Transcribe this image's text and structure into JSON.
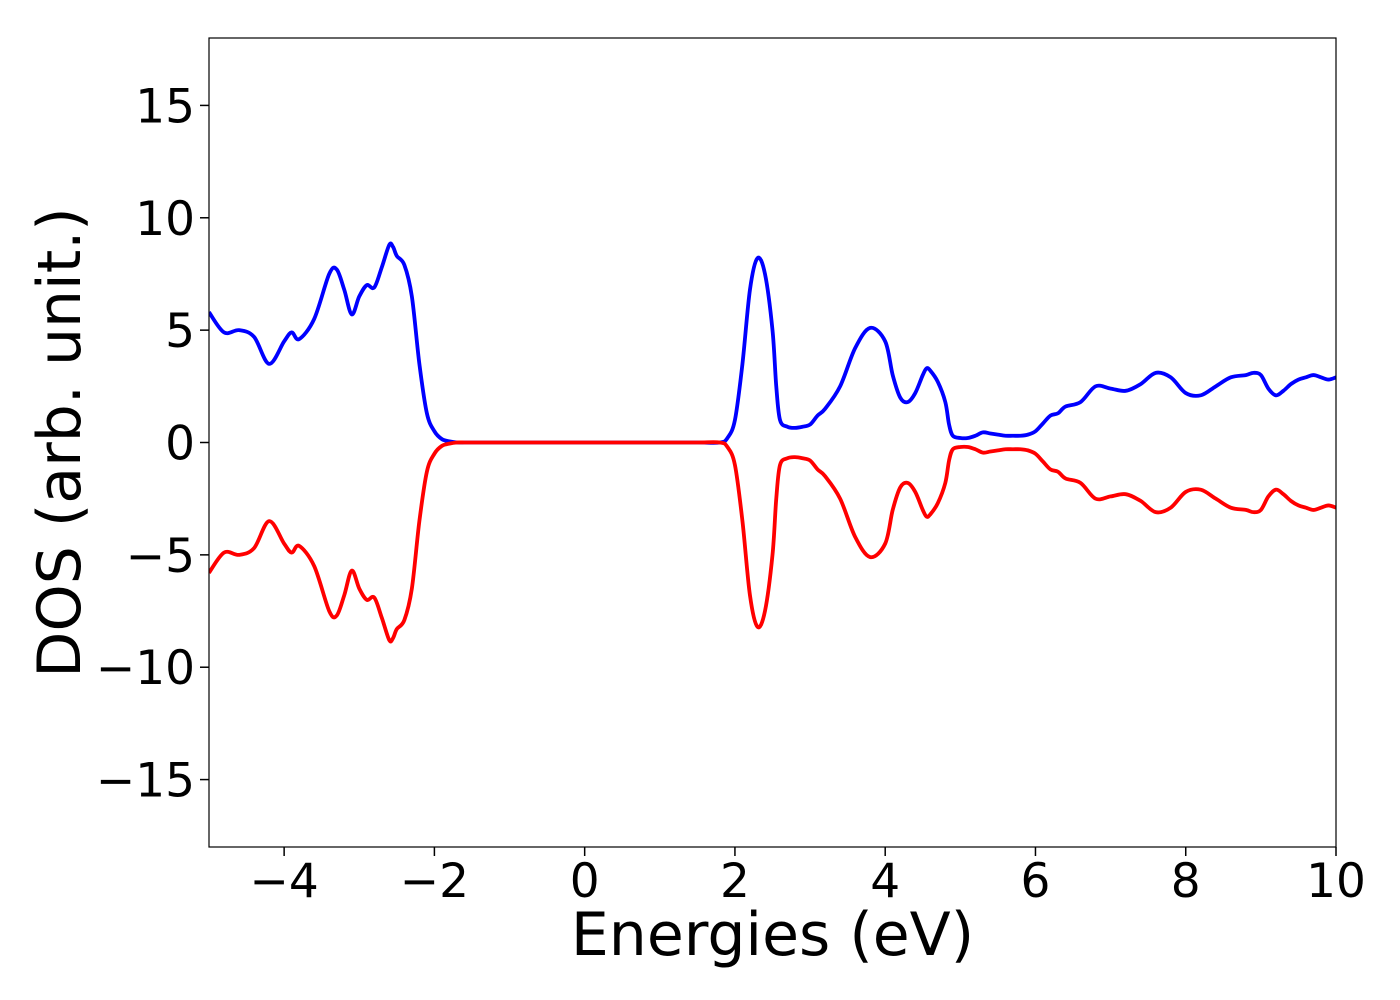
{
  "chart_data": {
    "type": "line",
    "title": "",
    "xlabel": "Energies (eV)",
    "ylabel": "DOS (arb. unit.)",
    "xlim": [
      -5,
      10
    ],
    "ylim": [
      -18,
      18
    ],
    "grid": false,
    "legend": "none",
    "x_ticks": [
      -4,
      -2,
      0,
      2,
      4,
      6,
      8,
      10
    ],
    "x_tick_labels": [
      "−4",
      "−2",
      "0",
      "2",
      "4",
      "6",
      "8",
      "10"
    ],
    "y_ticks": [
      -15,
      -10,
      -5,
      0,
      5,
      10,
      15
    ],
    "y_tick_labels": [
      "−15",
      "−10",
      "−5",
      "0",
      "5",
      "10",
      "15"
    ],
    "series": [
      {
        "color": "#0000ff",
        "x": [
          -5.0,
          -4.8,
          -4.6,
          -4.4,
          -4.2,
          -4.0,
          -3.9,
          -3.8,
          -3.6,
          -3.4,
          -3.3,
          -3.2,
          -3.1,
          -3.0,
          -2.9,
          -2.8,
          -2.7,
          -2.6,
          -2.55,
          -2.5,
          -2.4,
          -2.3,
          -2.2,
          -2.1,
          -2.0,
          -1.9,
          -1.8,
          -1.7,
          -1.6,
          -1.5,
          -1.4,
          -1.3,
          -1.2,
          -1.1,
          -1.0,
          -0.9,
          -0.8,
          -0.7,
          -0.6,
          -0.5,
          0.0,
          0.5,
          1.0,
          1.5,
          1.8,
          1.9,
          2.0,
          2.1,
          2.2,
          2.3,
          2.4,
          2.5,
          2.55,
          2.6,
          2.7,
          2.8,
          2.9,
          3.0,
          3.1,
          3.2,
          3.4,
          3.6,
          3.8,
          4.0,
          4.1,
          4.2,
          4.3,
          4.4,
          4.5,
          4.55,
          4.6,
          4.7,
          4.8,
          4.85,
          4.9,
          5.0,
          5.1,
          5.2,
          5.3,
          5.4,
          5.5,
          5.6,
          5.7,
          5.8,
          5.9,
          6.0,
          6.1,
          6.2,
          6.3,
          6.4,
          6.6,
          6.8,
          7.0,
          7.2,
          7.4,
          7.6,
          7.8,
          8.0,
          8.2,
          8.4,
          8.6,
          8.8,
          8.9,
          9.0,
          9.1,
          9.2,
          9.3,
          9.4,
          9.5,
          9.6,
          9.7,
          9.8,
          9.9,
          10.0
        ],
        "y": [
          5.8,
          4.9,
          5.0,
          4.7,
          3.5,
          4.5,
          4.9,
          4.6,
          5.5,
          7.5,
          7.7,
          6.8,
          5.7,
          6.5,
          7.0,
          6.9,
          7.8,
          8.8,
          8.7,
          8.3,
          7.9,
          6.5,
          3.5,
          1.3,
          0.5,
          0.15,
          0.05,
          0.0,
          0.0,
          0.0,
          0.0,
          0.0,
          0.0,
          0.0,
          0.0,
          0.0,
          0.0,
          0.0,
          0.0,
          0.0,
          0.0,
          0.0,
          0.0,
          0.0,
          0.0,
          0.2,
          1.0,
          3.5,
          6.8,
          8.2,
          7.5,
          5.0,
          2.5,
          1.0,
          0.7,
          0.65,
          0.7,
          0.8,
          1.2,
          1.5,
          2.5,
          4.2,
          5.1,
          4.5,
          3.0,
          2.0,
          1.8,
          2.2,
          3.0,
          3.3,
          3.2,
          2.7,
          1.8,
          0.8,
          0.3,
          0.2,
          0.2,
          0.3,
          0.45,
          0.4,
          0.35,
          0.3,
          0.3,
          0.3,
          0.35,
          0.5,
          0.85,
          1.2,
          1.3,
          1.6,
          1.8,
          2.5,
          2.4,
          2.3,
          2.6,
          3.1,
          2.9,
          2.2,
          2.1,
          2.5,
          2.9,
          3.0,
          3.1,
          3.0,
          2.4,
          2.1,
          2.3,
          2.6,
          2.8,
          2.9,
          3.0,
          2.9,
          2.8,
          2.9
        ]
      },
      {
        "color": "#ff0000",
        "x": [
          -5.0,
          -4.8,
          -4.6,
          -4.4,
          -4.2,
          -4.0,
          -3.9,
          -3.8,
          -3.6,
          -3.4,
          -3.3,
          -3.2,
          -3.1,
          -3.0,
          -2.9,
          -2.8,
          -2.7,
          -2.6,
          -2.55,
          -2.5,
          -2.4,
          -2.3,
          -2.2,
          -2.1,
          -2.0,
          -1.9,
          -1.8,
          -1.7,
          -1.6,
          -1.5,
          -1.4,
          -1.3,
          -1.2,
          -1.1,
          -1.0,
          -0.9,
          -0.8,
          -0.7,
          -0.6,
          -0.5,
          0.0,
          0.5,
          1.0,
          1.5,
          1.8,
          1.9,
          2.0,
          2.1,
          2.2,
          2.3,
          2.4,
          2.5,
          2.55,
          2.6,
          2.7,
          2.8,
          2.9,
          3.0,
          3.1,
          3.2,
          3.4,
          3.6,
          3.8,
          4.0,
          4.1,
          4.2,
          4.3,
          4.4,
          4.5,
          4.55,
          4.6,
          4.7,
          4.8,
          4.85,
          4.9,
          5.0,
          5.1,
          5.2,
          5.3,
          5.4,
          5.5,
          5.6,
          5.7,
          5.8,
          5.9,
          6.0,
          6.1,
          6.2,
          6.3,
          6.4,
          6.6,
          6.8,
          7.0,
          7.2,
          7.4,
          7.6,
          7.8,
          8.0,
          8.2,
          8.4,
          8.6,
          8.8,
          8.9,
          9.0,
          9.1,
          9.2,
          9.3,
          9.4,
          9.5,
          9.6,
          9.7,
          9.8,
          9.9,
          10.0
        ],
        "y": [
          -5.8,
          -4.9,
          -5.0,
          -4.7,
          -3.5,
          -4.5,
          -4.9,
          -4.6,
          -5.5,
          -7.5,
          -7.7,
          -6.8,
          -5.7,
          -6.5,
          -7.0,
          -6.9,
          -7.8,
          -8.8,
          -8.7,
          -8.3,
          -7.9,
          -6.5,
          -3.5,
          -1.3,
          -0.5,
          -0.15,
          -0.05,
          0.0,
          0.0,
          0.0,
          0.0,
          0.0,
          0.0,
          0.0,
          0.0,
          0.0,
          0.0,
          0.0,
          0.0,
          0.0,
          0.0,
          0.0,
          0.0,
          0.0,
          0.0,
          -0.2,
          -1.0,
          -3.5,
          -6.8,
          -8.2,
          -7.5,
          -5.0,
          -2.5,
          -1.0,
          -0.7,
          -0.65,
          -0.7,
          -0.8,
          -1.2,
          -1.5,
          -2.5,
          -4.2,
          -5.1,
          -4.5,
          -3.0,
          -2.0,
          -1.8,
          -2.2,
          -3.0,
          -3.3,
          -3.2,
          -2.7,
          -1.8,
          -0.8,
          -0.3,
          -0.2,
          -0.2,
          -0.3,
          -0.45,
          -0.4,
          -0.35,
          -0.3,
          -0.3,
          -0.3,
          -0.35,
          -0.5,
          -0.85,
          -1.2,
          -1.3,
          -1.6,
          -1.8,
          -2.5,
          -2.4,
          -2.3,
          -2.6,
          -3.1,
          -2.9,
          -2.2,
          -2.1,
          -2.5,
          -2.9,
          -3.0,
          -3.1,
          -3.0,
          -2.4,
          -2.1,
          -2.3,
          -2.6,
          -2.8,
          -2.9,
          -3.0,
          -2.9,
          -2.8,
          -2.9
        ]
      }
    ]
  }
}
